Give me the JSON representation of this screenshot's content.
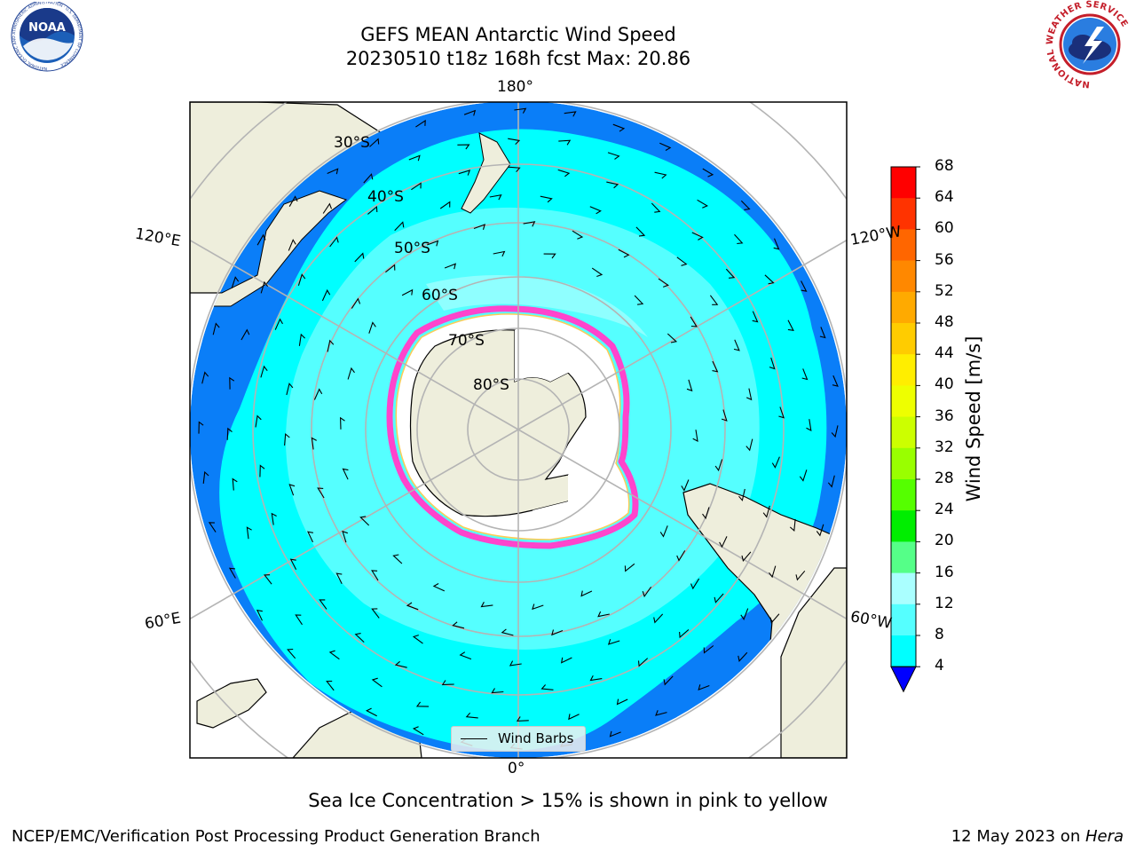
{
  "title_line1": "GEFS MEAN Antarctic Wind Speed",
  "title_line2": "20230510 t18z 168h fcst   Max: 20.86",
  "logos": {
    "noaa_text": "NOAA",
    "noaa_ring_text": "NATIONAL OCEANIC AND ATMOSPHERIC ADMINISTRATION · U.S. DEPARTMENT OF COMMERCE",
    "nws_ring_text": "NATIONAL WEATHER SERVICE"
  },
  "map": {
    "projection": "south-polar-stereographic",
    "lon_labels": {
      "top": "180°",
      "bottom": "0°",
      "upper_left": "120°E",
      "upper_right": "120°W",
      "lower_left": "60°E",
      "lower_right": "60°W"
    },
    "lat_labels": [
      "30°S",
      "40°S",
      "50°S",
      "60°S",
      "70°S",
      "80°S"
    ],
    "colors": {
      "ocean_outer": "#0a7ef8",
      "ocean_mid": "#00ffff",
      "ocean_inner": "#55ffff",
      "ocean_light": "#9dffff",
      "land": "#eeeedc",
      "sea_ice_edge": "#ff44cc",
      "sea_ice": "#ffffff",
      "graticule": "#b4b4b4"
    }
  },
  "legend": {
    "label": "Wind Barbs"
  },
  "colorbar": {
    "label": "Wind Speed [m/s]",
    "ticks": [
      "68",
      "64",
      "60",
      "56",
      "52",
      "48",
      "44",
      "40",
      "36",
      "32",
      "28",
      "24",
      "20",
      "16",
      "12",
      "8",
      "4"
    ],
    "colors": [
      "#ff0000",
      "#ff3300",
      "#ff6600",
      "#ff8800",
      "#ffaa00",
      "#ffcc00",
      "#ffee00",
      "#eeff00",
      "#ccff00",
      "#99ff00",
      "#55ff00",
      "#00ee00",
      "#55ff88",
      "#aaffff",
      "#55ffff",
      "#00ffff",
      "#0a7ef8"
    ],
    "extend_color": "#0000ff"
  },
  "caption": "Sea Ice Concentration > 15% is shown in pink to yellow",
  "footer_left": "NCEP/EMC/Verification Post Processing Product Generation Branch",
  "footer_right_prefix": "12 May 2023 on ",
  "footer_right_host": "Hera"
}
